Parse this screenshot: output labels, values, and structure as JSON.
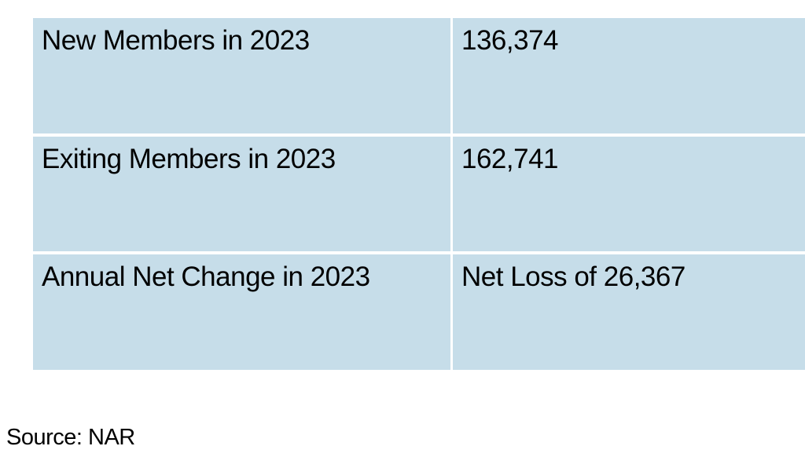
{
  "table": {
    "description": "Membership change table",
    "fill_color": "#c6dde9",
    "divider_color": "#ffffff",
    "text_color": "#000000",
    "rows": [
      {
        "label": "New Members in 2023",
        "value": "136,374"
      },
      {
        "label": "Exiting Members in 2023",
        "value": "162,741"
      },
      {
        "label": "Annual Net Change in 2023",
        "value": "Net Loss of 26,367"
      }
    ]
  },
  "source_note": "Source: NAR"
}
